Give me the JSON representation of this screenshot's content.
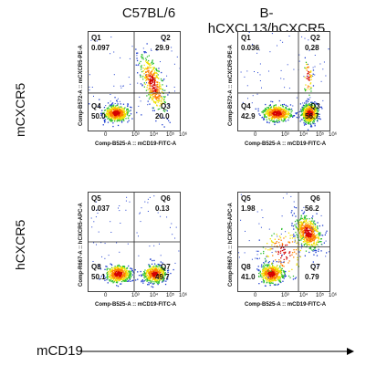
{
  "columns": [
    "C57BL/6",
    "B-hCXCL13/hCXCR5"
  ],
  "rows": [
    "mCXCR5",
    "hCXCR5"
  ],
  "x_axis_title": "mCD19",
  "x_tick_labels": [
    "0",
    "10³",
    "10⁴",
    "10⁵",
    "10⁶"
  ],
  "chart_data": [
    {
      "type": "scatter",
      "panel": "C57BL/6 mCXCR5",
      "xlabel": "Comp-B525-A :: mCD19-FITC-A",
      "ylabel": "Comp-B572-A :: mCXCR5-PE-A",
      "quadrants": [
        {
          "name": "Q1",
          "value": "0.097"
        },
        {
          "name": "Q2",
          "value": "29.9"
        },
        {
          "name": "Q3",
          "value": "20.0"
        },
        {
          "name": "Q4",
          "value": "50.0"
        }
      ]
    },
    {
      "type": "scatter",
      "panel": "B-hCXCL13/hCXCR5 mCXCR5",
      "xlabel": "Comp-B525-A :: mCD19-FITC-A",
      "ylabel": "Comp-B572-A :: mCXCR5-PE-A",
      "quadrants": [
        {
          "name": "Q1",
          "value": "0.036"
        },
        {
          "name": "Q2",
          "value": "0.28"
        },
        {
          "name": "Q3",
          "value": "56.7"
        },
        {
          "name": "Q4",
          "value": "42.9"
        }
      ]
    },
    {
      "type": "scatter",
      "panel": "C57BL/6 hCXCR5",
      "xlabel": "Comp-B525-A :: mCD19-FITC-A",
      "ylabel": "Comp-R667-A :: hCXCR5-APC-A",
      "quadrants": [
        {
          "name": "Q5",
          "value": "0.037"
        },
        {
          "name": "Q6",
          "value": "0.13"
        },
        {
          "name": "Q7",
          "value": "49.7"
        },
        {
          "name": "Q8",
          "value": "50.1"
        }
      ]
    },
    {
      "type": "scatter",
      "panel": "B-hCXCL13/hCXCR5 hCXCR5",
      "xlabel": "Comp-B525-A :: mCD19-FITC-A",
      "ylabel": "Comp-R667-A :: hCXCR5-APC-A",
      "quadrants": [
        {
          "name": "Q5",
          "value": "1.98"
        },
        {
          "name": "Q6",
          "value": "56.2"
        },
        {
          "name": "Q7",
          "value": "0.79"
        },
        {
          "name": "Q8",
          "value": "41.0"
        }
      ]
    }
  ]
}
